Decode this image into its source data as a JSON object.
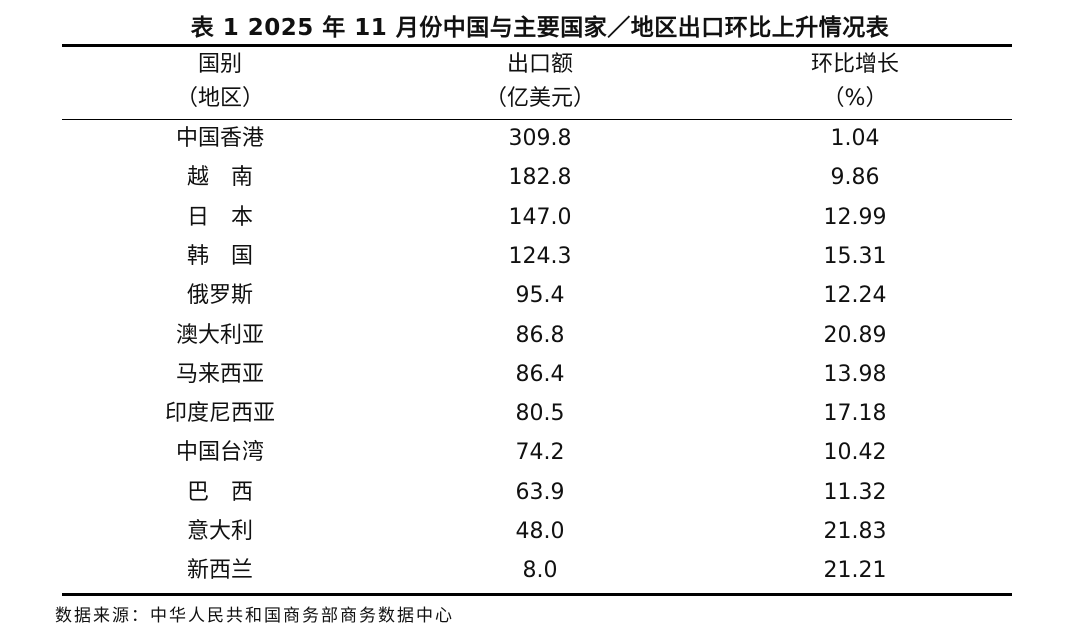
{
  "title": "表 1  2025 年 11 月份中国与主要国家／地区出口环比上升情况表",
  "table": {
    "header": [
      [
        "国别",
        "（地区）"
      ],
      [
        "出口额",
        "（亿美元）"
      ],
      [
        "环比增长",
        "（%）"
      ]
    ],
    "rows": [
      [
        "中国香港",
        "309.8",
        "1.04"
      ],
      [
        "越　南",
        "182.8",
        "9.86"
      ],
      [
        "日　本",
        "147.0",
        "12.99"
      ],
      [
        "韩　国",
        "124.3",
        "15.31"
      ],
      [
        "俄罗斯",
        "95.4",
        "12.24"
      ],
      [
        "澳大利亚",
        "86.8",
        "20.89"
      ],
      [
        "马来西亚",
        "86.4",
        "13.98"
      ],
      [
        "印度尼西亚",
        "80.5",
        "17.18"
      ],
      [
        "中国台湾",
        "74.2",
        "10.42"
      ],
      [
        "巴　西",
        "63.9",
        "11.32"
      ],
      [
        "意大利",
        "48.0",
        "21.83"
      ],
      [
        "新西兰",
        "8.0",
        "21.21"
      ]
    ]
  },
  "source": "数据来源：中华人民共和国商务部商务数据中心"
}
